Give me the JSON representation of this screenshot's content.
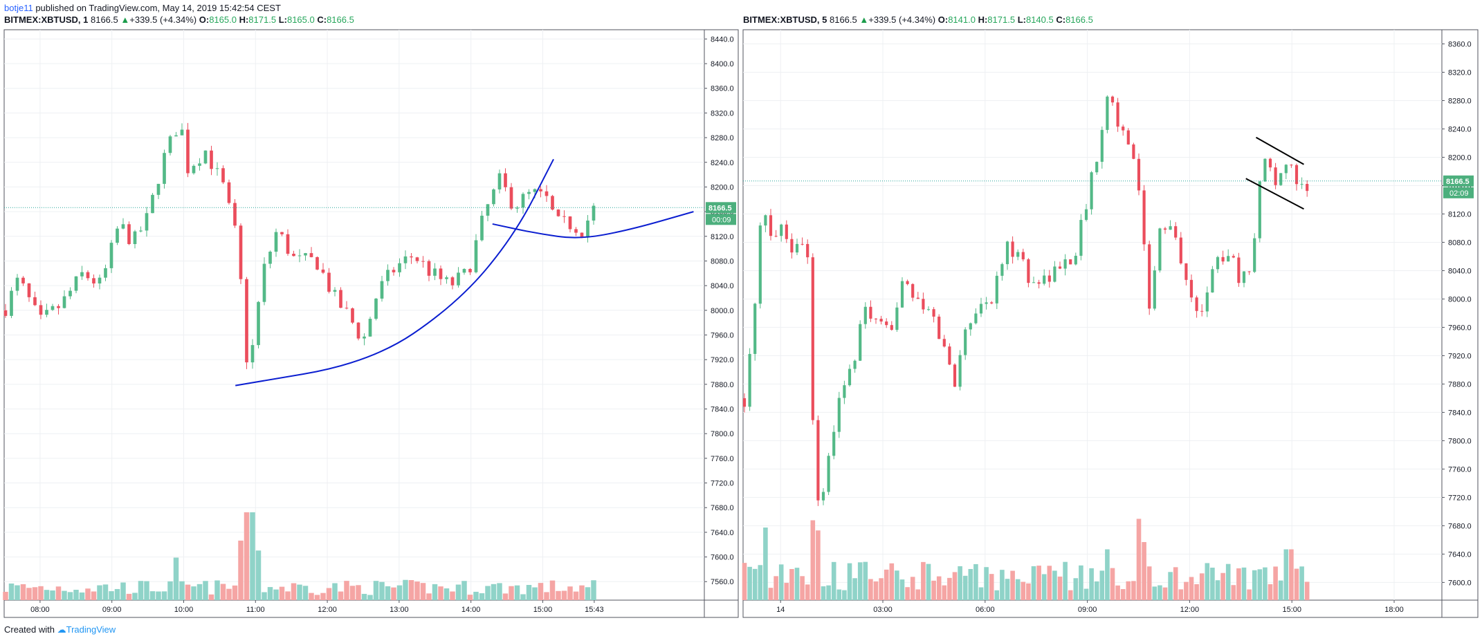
{
  "header": {
    "user": "botje11",
    "published": "published on TradingView.com, May 14, 2019 15:42:54 CEST"
  },
  "footer": {
    "created_with": "Created with",
    "brand": "TradingView"
  },
  "colors": {
    "up": "#26a69a",
    "down": "#ef5350",
    "up_candle": "#53b987",
    "down_candle": "#eb4d5c",
    "vol_up": "#8fd3c8",
    "vol_down": "#f5a5a4",
    "pattern": "#0b1ed0",
    "badge": "#4caf7d"
  },
  "chart_data": [
    {
      "type": "candlestick",
      "symbol": "BITMEX:XBTUSD",
      "interval": "1",
      "last": "8166.5",
      "change": "+339.5 (+4.34%)",
      "open_label": "O:",
      "open": "8165.0",
      "high_label": "H:",
      "high": "8171.5",
      "low_label": "L:",
      "low": "8165.0",
      "close_label": "C:",
      "close": "8166.5",
      "price_badge": "8166.5",
      "countdown_badge": "00:09",
      "y_ticks": [
        "8440.0",
        "8400.0",
        "8360.0",
        "8320.0",
        "8280.0",
        "8240.0",
        "8200.0",
        "8160.0",
        "8120.0",
        "8080.0",
        "8040.0",
        "8000.0",
        "7960.0",
        "7920.0",
        "7880.0",
        "7840.0",
        "7800.0",
        "7760.0",
        "7720.0",
        "7680.0",
        "7640.0",
        "7600.0",
        "7560.0"
      ],
      "ylim": [
        7530,
        8455
      ],
      "x_ticks": [
        "08:00",
        "09:00",
        "10:00",
        "11:00",
        "12:00",
        "13:00",
        "14:00",
        "15:00",
        "15:43"
      ],
      "x_tick_hours": [
        8,
        9,
        10,
        11,
        12,
        13,
        14,
        15,
        15.717
      ],
      "xlim_hours": [
        7.5,
        17.25
      ],
      "anchors": [
        [
          7.5,
          8000
        ],
        [
          7.7,
          8050
        ],
        [
          8.0,
          7980
        ],
        [
          8.3,
          8010
        ],
        [
          8.6,
          8060
        ],
        [
          8.85,
          8040
        ],
        [
          9.1,
          8140
        ],
        [
          9.3,
          8110
        ],
        [
          9.5,
          8150
        ],
        [
          9.7,
          8240
        ],
        [
          9.95,
          8310
        ],
        [
          10.05,
          8230
        ],
        [
          10.3,
          8260
        ],
        [
          10.55,
          8200
        ],
        [
          10.75,
          8110
        ],
        [
          10.9,
          7890
        ],
        [
          11.1,
          8060
        ],
        [
          11.3,
          8130
        ],
        [
          11.55,
          8080
        ],
        [
          11.85,
          8080
        ],
        [
          12.1,
          8020
        ],
        [
          12.3,
          7990
        ],
        [
          12.5,
          7950
        ],
        [
          12.7,
          8030
        ],
        [
          12.95,
          8070
        ],
        [
          13.2,
          8090
        ],
        [
          13.45,
          8060
        ],
        [
          13.7,
          8040
        ],
        [
          13.95,
          8060
        ],
        [
          14.2,
          8160
        ],
        [
          14.4,
          8210
        ],
        [
          14.6,
          8170
        ],
        [
          14.85,
          8190
        ],
        [
          15.05,
          8180
        ],
        [
          15.2,
          8140
        ],
        [
          15.4,
          8140
        ],
        [
          15.55,
          8130
        ],
        [
          15.72,
          8166.5
        ]
      ],
      "volume": {
        "base_level": 0.12,
        "spikes": [
          [
            10.9,
            0.62
          ],
          [
            10.8,
            0.42
          ],
          [
            11.05,
            0.35
          ],
          [
            9.9,
            0.3
          ]
        ]
      },
      "annotations": [
        {
          "kind": "arc",
          "points": [
            [
              10.72,
              7878
            ],
            [
              12.6,
              7915
            ],
            [
              13.8,
              8010
            ],
            [
              14.6,
              8120
            ],
            [
              15.15,
              8245
            ]
          ]
        },
        {
          "kind": "arc",
          "points": [
            [
              14.3,
              8140
            ],
            [
              14.9,
              8125
            ],
            [
              15.5,
              8115
            ],
            [
              16.2,
              8130
            ],
            [
              17.1,
              8160
            ]
          ]
        }
      ]
    },
    {
      "type": "candlestick",
      "symbol": "BITMEX:XBTUSD",
      "interval": "5",
      "last": "8166.5",
      "change": "+339.5 (+4.34%)",
      "open_label": "O:",
      "open": "8141.0",
      "high_label": "H:",
      "high": "8171.5",
      "low_label": "L:",
      "low": "8140.5",
      "close_label": "C:",
      "close": "8166.5",
      "price_badge": "8166.5",
      "countdown_badge": "02:09",
      "y_ticks": [
        "8360.0",
        "8320.0",
        "8280.0",
        "8240.0",
        "8200.0",
        "8160.0",
        "8120.0",
        "8080.0",
        "8040.0",
        "8000.0",
        "7960.0",
        "7920.0",
        "7880.0",
        "7840.0",
        "7800.0",
        "7760.0",
        "7720.0",
        "7680.0",
        "7640.0",
        "7600.0"
      ],
      "ylim": [
        7575,
        8380
      ],
      "x_ticks": [
        "14",
        "03:00",
        "06:00",
        "09:00",
        "12:00",
        "15:00",
        "18:00"
      ],
      "x_tick_hours": [
        0,
        3,
        6,
        9,
        12,
        15,
        18
      ],
      "xlim_hours": [
        -1.1,
        19.4
      ],
      "anchors": [
        [
          -1.05,
          7860
        ],
        [
          -0.8,
          7950
        ],
        [
          -0.55,
          8130
        ],
        [
          -0.3,
          8090
        ],
        [
          0,
          8110
        ],
        [
          0.3,
          8070
        ],
        [
          0.55,
          8090
        ],
        [
          0.85,
          8050
        ],
        [
          1.0,
          7720
        ],
        [
          1.25,
          7720
        ],
        [
          1.5,
          7800
        ],
        [
          1.8,
          7880
        ],
        [
          2.1,
          7900
        ],
        [
          2.5,
          7990
        ],
        [
          2.8,
          7960
        ],
        [
          3.2,
          7950
        ],
        [
          3.6,
          8040
        ],
        [
          4.0,
          7990
        ],
        [
          4.4,
          7980
        ],
        [
          4.8,
          7930
        ],
        [
          5.1,
          7880
        ],
        [
          5.4,
          7960
        ],
        [
          5.8,
          7990
        ],
        [
          6.2,
          8000
        ],
        [
          6.6,
          8070
        ],
        [
          7.0,
          8070
        ],
        [
          7.3,
          8020
        ],
        [
          7.7,
          8030
        ],
        [
          8.1,
          8040
        ],
        [
          8.6,
          8060
        ],
        [
          9.0,
          8140
        ],
        [
          9.3,
          8210
        ],
        [
          9.6,
          8300
        ],
        [
          9.9,
          8250
        ],
        [
          10.2,
          8210
        ],
        [
          10.5,
          8170
        ],
        [
          10.8,
          7990
        ],
        [
          11.1,
          8090
        ],
        [
          11.4,
          8100
        ],
        [
          11.7,
          8070
        ],
        [
          12.0,
          8000
        ],
        [
          12.3,
          7980
        ],
        [
          12.6,
          8030
        ],
        [
          12.9,
          8060
        ],
        [
          13.2,
          8070
        ],
        [
          13.5,
          8020
        ],
        [
          13.8,
          8050
        ],
        [
          14.1,
          8180
        ],
        [
          14.35,
          8200
        ],
        [
          14.6,
          8160
        ],
        [
          14.9,
          8190
        ],
        [
          15.2,
          8150
        ],
        [
          15.5,
          8166.5
        ]
      ],
      "volume": {
        "base_level": 0.22,
        "spikes": [
          [
            -0.45,
            0.5
          ],
          [
            0.95,
            0.55
          ],
          [
            1.05,
            0.48
          ],
          [
            10.5,
            0.56
          ],
          [
            10.6,
            0.4
          ],
          [
            9.6,
            0.35
          ],
          [
            14.9,
            0.35
          ]
        ]
      },
      "annotations": [
        {
          "kind": "line",
          "points": [
            [
              13.95,
              8228
            ],
            [
              15.35,
              8190
            ]
          ]
        },
        {
          "kind": "line",
          "points": [
            [
              13.65,
              8170
            ],
            [
              15.35,
              8127
            ]
          ]
        }
      ]
    }
  ]
}
